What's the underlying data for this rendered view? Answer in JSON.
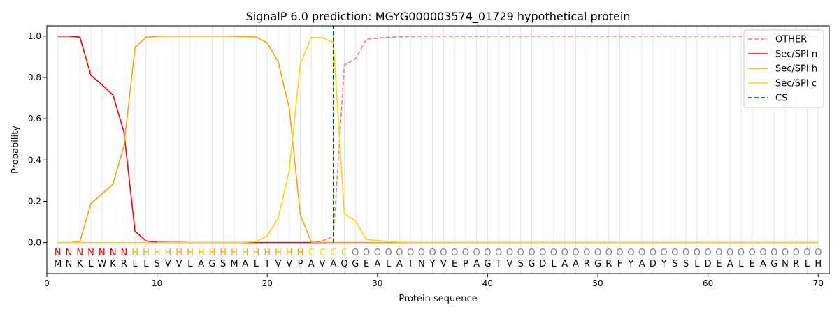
{
  "chart_data": {
    "type": "line",
    "title": "SignalP 6.0 prediction: MGYG000003574_01729 hypothetical protein",
    "xlabel": "Protein sequence",
    "ylabel": "Probability",
    "xlim": [
      0,
      71
    ],
    "ylim": [
      -0.15,
      1.05
    ],
    "x_ticks": [
      0,
      10,
      20,
      30,
      40,
      50,
      60,
      70
    ],
    "y_ticks": [
      0.0,
      0.2,
      0.4,
      0.6,
      0.8,
      1.0
    ],
    "x_tick_labels": [
      "0",
      "10",
      "20",
      "30",
      "40",
      "50",
      "60",
      "70"
    ],
    "y_tick_labels": [
      "0.0",
      "0.2",
      "0.4",
      "0.6",
      "0.8",
      "1.0"
    ],
    "grid": "vertical lines at each residue",
    "legend_position": "top-right",
    "sequence": "MNKLWKRLLSVVLAGSMALTVVPAVAQGEALATNYVEPAGTVSGDLAARGRFYADYSSLDEALEAGNRLH",
    "region_labels": "NNNNNNNHHHHHHHHHHHHHHHHCCCCOOOOOOOOOOOOOOOOOOOOOOOOOOOOOOOOOOOOOOOOOOOO",
    "region_colors": {
      "N": "#ff0000",
      "H": "#ffa500",
      "C": "#ffd700",
      "O": "#808080"
    },
    "cleavage_site": 26,
    "series": [
      {
        "name": "OTHER",
        "color": "#f08080",
        "style": "dashed",
        "x": [
          1,
          2,
          3,
          4,
          5,
          6,
          7,
          8,
          9,
          10,
          11,
          12,
          13,
          14,
          15,
          16,
          17,
          18,
          19,
          20,
          21,
          22,
          23,
          24,
          25,
          26,
          27,
          28,
          29,
          30,
          31,
          32,
          33,
          34,
          35,
          36,
          37,
          38,
          39,
          40,
          41,
          42,
          43,
          44,
          45,
          46,
          47,
          48,
          49,
          50,
          51,
          52,
          53,
          54,
          55,
          56,
          57,
          58,
          59,
          60,
          61,
          62,
          63,
          64,
          65,
          66,
          67,
          68,
          69,
          70
        ],
        "values": [
          0,
          0,
          0,
          0,
          0,
          0,
          0,
          0,
          0,
          0,
          0,
          0,
          0,
          0,
          0,
          0,
          0,
          0,
          0,
          0,
          0,
          0,
          0,
          0.001,
          0.008,
          0.03,
          0.86,
          0.89,
          0.985,
          0.99,
          0.995,
          0.997,
          0.998,
          1,
          1,
          1,
          1,
          1,
          1,
          1,
          1,
          1,
          1,
          1,
          1,
          1,
          1,
          1,
          1,
          1,
          1,
          1,
          1,
          1,
          1,
          1,
          1,
          1,
          1,
          1,
          1,
          1,
          1,
          1,
          1,
          1,
          1,
          1,
          1,
          1
        ]
      },
      {
        "name": "Sec/SPI n",
        "color": "#ff0000",
        "style": "solid",
        "x": [
          1,
          2,
          3,
          4,
          5,
          6,
          7,
          8,
          9,
          10,
          11,
          12,
          13,
          14,
          15,
          16,
          17,
          18,
          19,
          20,
          21,
          22,
          23,
          24,
          25,
          26,
          27,
          28,
          29,
          30,
          31,
          32,
          33,
          34,
          35,
          36,
          37,
          38,
          39,
          40,
          41,
          42,
          43,
          44,
          45,
          46,
          47,
          48,
          49,
          50,
          51,
          52,
          53,
          54,
          55,
          56,
          57,
          58,
          59,
          60,
          61,
          62,
          63,
          64,
          65,
          66,
          67,
          68,
          69,
          70
        ],
        "values": [
          1.0,
          1.0,
          0.995,
          0.81,
          0.765,
          0.715,
          0.535,
          0.055,
          0.008,
          0.002,
          0.001,
          0.001,
          0,
          0,
          0,
          0,
          0,
          0,
          0,
          0,
          0,
          0,
          0,
          0,
          0,
          0,
          0,
          0,
          0,
          0,
          0,
          0,
          0,
          0,
          0,
          0,
          0,
          0,
          0,
          0,
          0,
          0,
          0,
          0,
          0,
          0,
          0,
          0,
          0,
          0,
          0,
          0,
          0,
          0,
          0,
          0,
          0,
          0,
          0,
          0,
          0,
          0,
          0,
          0,
          0,
          0,
          0,
          0,
          0,
          0
        ]
      },
      {
        "name": "Sec/SPI h",
        "color": "#ffa500",
        "style": "solid",
        "x": [
          1,
          2,
          3,
          4,
          5,
          6,
          7,
          8,
          9,
          10,
          11,
          12,
          13,
          14,
          15,
          16,
          17,
          18,
          19,
          20,
          21,
          22,
          23,
          24,
          25,
          26,
          27,
          28,
          29,
          30,
          31,
          32,
          33,
          34,
          35,
          36,
          37,
          38,
          39,
          40,
          41,
          42,
          43,
          44,
          45,
          46,
          47,
          48,
          49,
          50,
          51,
          52,
          53,
          54,
          55,
          56,
          57,
          58,
          59,
          60,
          61,
          62,
          63,
          64,
          65,
          66,
          67,
          68,
          69,
          70
        ],
        "values": [
          0,
          0,
          0.005,
          0.19,
          0.235,
          0.283,
          0.47,
          0.945,
          0.995,
          0.999,
          1,
          1,
          1,
          1,
          1,
          1,
          0.999,
          0.998,
          0.995,
          0.968,
          0.875,
          0.65,
          0.135,
          0.002,
          0.001,
          0,
          0,
          0,
          0,
          0,
          0,
          0,
          0,
          0,
          0,
          0,
          0,
          0,
          0,
          0,
          0,
          0,
          0,
          0,
          0,
          0,
          0,
          0,
          0,
          0,
          0,
          0,
          0,
          0,
          0,
          0,
          0,
          0,
          0,
          0,
          0,
          0,
          0,
          0,
          0,
          0,
          0,
          0,
          0,
          0
        ]
      },
      {
        "name": "Sec/SPI c",
        "color": "#ffd700",
        "style": "solid",
        "x": [
          1,
          2,
          3,
          4,
          5,
          6,
          7,
          8,
          9,
          10,
          11,
          12,
          13,
          14,
          15,
          16,
          17,
          18,
          19,
          20,
          21,
          22,
          23,
          24,
          25,
          26,
          27,
          28,
          29,
          30,
          31,
          32,
          33,
          34,
          35,
          36,
          37,
          38,
          39,
          40,
          41,
          42,
          43,
          44,
          45,
          46,
          47,
          48,
          49,
          50,
          51,
          52,
          53,
          54,
          55,
          56,
          57,
          58,
          59,
          60,
          61,
          62,
          63,
          64,
          65,
          66,
          67,
          68,
          69,
          70
        ],
        "values": [
          0,
          0,
          0,
          0,
          0,
          0,
          0,
          0,
          0,
          0,
          0,
          0,
          0,
          0,
          0,
          0,
          0,
          0.001,
          0.005,
          0.032,
          0.12,
          0.35,
          0.865,
          0.995,
          0.992,
          0.97,
          0.14,
          0.105,
          0.015,
          0.01,
          0.006,
          0.002,
          0.001,
          0,
          0,
          0,
          0,
          0,
          0,
          0,
          0,
          0,
          0,
          0,
          0,
          0,
          0,
          0,
          0,
          0,
          0,
          0,
          0,
          0,
          0,
          0,
          0,
          0,
          0,
          0,
          0,
          0,
          0,
          0,
          0,
          0,
          0,
          0,
          0,
          0
        ]
      },
      {
        "name": "CS",
        "color": "#006400",
        "style": "dashed",
        "x": [
          26,
          26
        ],
        "values": [
          0,
          1.05
        ]
      }
    ]
  }
}
